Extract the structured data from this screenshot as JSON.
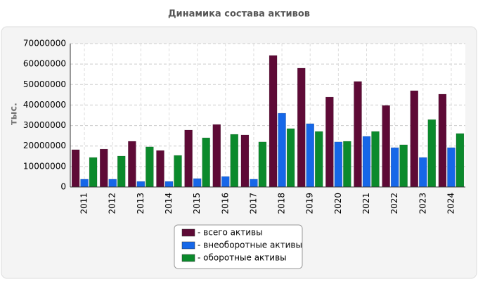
{
  "chart_data": {
    "type": "bar",
    "title": "Динамика состава активов",
    "y_label": "тыс.",
    "categories": [
      "2011",
      "2012",
      "2013",
      "2014",
      "2015",
      "2016",
      "2017",
      "2018",
      "2019",
      "2020",
      "2021",
      "2022",
      "2023",
      "2024"
    ],
    "series": [
      {
        "name": "- всего активы",
        "color": "#5e0a36",
        "values": [
          18200000,
          18500000,
          22300000,
          17800000,
          27800000,
          30500000,
          25400000,
          64200000,
          58000000,
          43900000,
          51500000,
          39800000,
          47000000,
          45300000
        ]
      },
      {
        "name": "- внеоборотные активы",
        "color": "#1667e8",
        "values": [
          3800000,
          3800000,
          2700000,
          2700000,
          4100000,
          5100000,
          3800000,
          36000000,
          30900000,
          22000000,
          24700000,
          19200000,
          14400000,
          19200000
        ]
      },
      {
        "name": "- оборотные активы",
        "color": "#0b8a2c",
        "values": [
          14400000,
          15100000,
          19600000,
          15400000,
          24000000,
          25700000,
          22000000,
          28500000,
          27100000,
          22300000,
          27100000,
          20600000,
          32900000,
          26100000
        ]
      }
    ],
    "ylim": [
      0,
      70000000
    ],
    "yticks": [
      0,
      10000000,
      20000000,
      30000000,
      40000000,
      50000000,
      60000000,
      70000000
    ],
    "grid": true
  }
}
